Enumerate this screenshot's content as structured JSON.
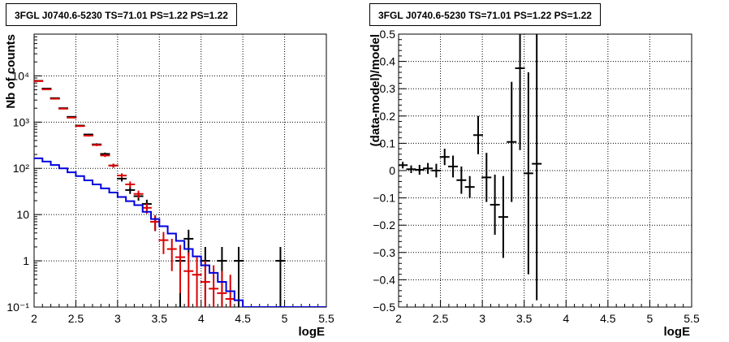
{
  "chart_data": [
    {
      "type": "line",
      "title": "3FGL J0740.6-5230 TS=71.01 PS=1.22 PS=1.22",
      "xlabel": "logE",
      "ylabel": "Nb of counts",
      "xlim": [
        2,
        5.5
      ],
      "ylim": [
        0.1,
        80000
      ],
      "yscale": "log",
      "grid": true,
      "x_ticks": [
        "2",
        "2.5",
        "3",
        "3.5",
        "4",
        "4.5",
        "5",
        "5.5"
      ],
      "y_ticks": [
        "10⁻¹",
        "1",
        "10",
        "10²",
        "10³",
        "10⁴"
      ],
      "series": [
        {
          "color": "#000000",
          "style": "errorbar",
          "points": [
            {
              "x": 2.05,
              "y": 7800,
              "lo": 7700,
              "hi": 7900
            },
            {
              "x": 2.15,
              "y": 5300,
              "lo": 5230,
              "hi": 5370
            },
            {
              "x": 2.25,
              "y": 3300,
              "lo": 3240,
              "hi": 3360
            },
            {
              "x": 2.35,
              "y": 2000,
              "lo": 1955,
              "hi": 2045
            },
            {
              "x": 2.45,
              "y": 1300,
              "lo": 1265,
              "hi": 1335
            },
            {
              "x": 2.55,
              "y": 840,
              "lo": 810,
              "hi": 870
            },
            {
              "x": 2.65,
              "y": 540,
              "lo": 517,
              "hi": 563
            },
            {
              "x": 2.75,
              "y": 330,
              "lo": 312,
              "hi": 348
            },
            {
              "x": 2.85,
              "y": 205,
              "lo": 191,
              "hi": 219
            },
            {
              "x": 2.95,
              "y": 115,
              "lo": 104,
              "hi": 126
            },
            {
              "x": 3.05,
              "y": 60,
              "lo": 52,
              "hi": 68
            },
            {
              "x": 3.15,
              "y": 34,
              "lo": 28,
              "hi": 40
            },
            {
              "x": 3.25,
              "y": 25,
              "lo": 20,
              "hi": 30
            },
            {
              "x": 3.35,
              "y": 17,
              "lo": 13,
              "hi": 21
            },
            {
              "x": 3.45,
              "y": 7,
              "lo": 4.4,
              "hi": 9.6
            },
            {
              "x": 3.75,
              "y": 1,
              "lo": 0.1,
              "hi": 2
            },
            {
              "x": 3.85,
              "y": 3,
              "lo": 1.3,
              "hi": 4.7
            },
            {
              "x": 4.05,
              "y": 1,
              "lo": 0.1,
              "hi": 2
            },
            {
              "x": 4.25,
              "y": 1,
              "lo": 0.1,
              "hi": 2
            },
            {
              "x": 4.45,
              "y": 1,
              "lo": 0.1,
              "hi": 2
            },
            {
              "x": 4.95,
              "y": 1,
              "lo": 0.1,
              "hi": 2
            }
          ]
        },
        {
          "color": "#dd0000",
          "style": "errorbar",
          "points": [
            {
              "x": 2.05,
              "y": 7700,
              "lo": 7600,
              "hi": 7800
            },
            {
              "x": 2.15,
              "y": 5100,
              "lo": 5030,
              "hi": 5170
            },
            {
              "x": 2.25,
              "y": 3200,
              "lo": 3140,
              "hi": 3260
            },
            {
              "x": 2.35,
              "y": 1950,
              "lo": 1905,
              "hi": 1995
            },
            {
              "x": 2.45,
              "y": 1250,
              "lo": 1215,
              "hi": 1285
            },
            {
              "x": 2.55,
              "y": 820,
              "lo": 790,
              "hi": 850
            },
            {
              "x": 2.65,
              "y": 510,
              "lo": 487,
              "hi": 533
            },
            {
              "x": 2.75,
              "y": 320,
              "lo": 302,
              "hi": 338
            },
            {
              "x": 2.85,
              "y": 190,
              "lo": 176,
              "hi": 204
            },
            {
              "x": 2.95,
              "y": 115,
              "lo": 104,
              "hi": 126
            },
            {
              "x": 3.05,
              "y": 70,
              "lo": 62,
              "hi": 78
            },
            {
              "x": 3.15,
              "y": 45,
              "lo": 38,
              "hi": 52
            },
            {
              "x": 3.25,
              "y": 28,
              "lo": 23,
              "hi": 33
            },
            {
              "x": 3.35,
              "y": 14,
              "lo": 10.5,
              "hi": 17.5
            },
            {
              "x": 3.45,
              "y": 7,
              "lo": 4.5,
              "hi": 9.5
            },
            {
              "x": 3.55,
              "y": 2.8,
              "lo": 1.4,
              "hi": 4.2
            },
            {
              "x": 3.65,
              "y": 1.8,
              "lo": 0.6,
              "hi": 3
            },
            {
              "x": 3.75,
              "y": 1.2,
              "lo": 0.2,
              "hi": 2.2
            },
            {
              "x": 3.85,
              "y": 0.6,
              "lo": 0.1,
              "hi": 1.5
            },
            {
              "x": 3.95,
              "y": 0.5,
              "lo": 0.1,
              "hi": 1.2
            },
            {
              "x": 4.05,
              "y": 0.35,
              "lo": 0.1,
              "hi": 1
            },
            {
              "x": 4.15,
              "y": 0.25,
              "lo": 0.1,
              "hi": 0.8
            },
            {
              "x": 4.25,
              "y": 0.2,
              "lo": 0.1,
              "hi": 0.6
            },
            {
              "x": 4.35,
              "y": 0.15,
              "lo": 0.1,
              "hi": 0.5
            }
          ]
        },
        {
          "color": "#0000dd",
          "style": "step",
          "edges": [
            2.0,
            2.1,
            2.2,
            2.3,
            2.4,
            2.5,
            2.6,
            2.7,
            2.8,
            2.9,
            3.0,
            3.1,
            3.2,
            3.3,
            3.4,
            3.5,
            3.6,
            3.7,
            3.8,
            3.9,
            4.0,
            4.1,
            4.2,
            4.3,
            4.4,
            4.5,
            5.5
          ],
          "values": [
            165,
            140,
            118,
            100,
            82,
            68,
            55,
            45,
            37,
            30,
            24,
            19.5,
            16,
            11.5,
            8,
            5.6,
            3.9,
            2.7,
            1.8,
            1.25,
            0.8,
            0.55,
            0.35,
            0.22,
            0.14,
            0.1
          ]
        }
      ]
    },
    {
      "type": "scatter",
      "title": "3FGL J0740.6-5230 TS=71.01 PS=1.22 PS=1.22",
      "xlabel": "logE",
      "ylabel": "(data-model)/model",
      "xlim": [
        2,
        5.5
      ],
      "ylim": [
        -0.5,
        0.5
      ],
      "grid": true,
      "x_ticks": [
        "2",
        "2.5",
        "3",
        "3.5",
        "4",
        "4.5",
        "5",
        "5.5"
      ],
      "y_ticks": [
        "−0.5",
        "−0.4",
        "−0.3",
        "−0.2",
        "−0.1",
        "0",
        "0.1",
        "0.2",
        "0.3",
        "0.4",
        "0.5"
      ],
      "series": [
        {
          "color": "#000000",
          "style": "errorbar",
          "points": [
            {
              "x": 2.05,
              "y": 0.02,
              "err": 0.012
            },
            {
              "x": 2.15,
              "y": 0.005,
              "err": 0.014
            },
            {
              "x": 2.25,
              "y": 0.003,
              "err": 0.018
            },
            {
              "x": 2.35,
              "y": 0.008,
              "err": 0.02
            },
            {
              "x": 2.45,
              "y": 0.0,
              "err": 0.025
            },
            {
              "x": 2.55,
              "y": 0.05,
              "err": 0.03
            },
            {
              "x": 2.65,
              "y": 0.015,
              "err": 0.04
            },
            {
              "x": 2.75,
              "y": -0.035,
              "err": 0.05
            },
            {
              "x": 2.85,
              "y": -0.06,
              "err": 0.04
            },
            {
              "x": 2.95,
              "y": 0.13,
              "err": 0.07
            },
            {
              "x": 3.05,
              "y": -0.025,
              "err": 0.09
            },
            {
              "x": 3.15,
              "y": -0.125,
              "err": 0.11
            },
            {
              "x": 3.25,
              "y": -0.17,
              "err": 0.15
            },
            {
              "x": 3.35,
              "y": 0.105,
              "err": 0.22
            },
            {
              "x": 3.45,
              "y": 0.375,
              "err": 0.3
            },
            {
              "x": 3.55,
              "y": -0.01,
              "err": 0.37
            },
            {
              "x": 3.65,
              "y": 0.025,
              "err": 0.5
            }
          ]
        }
      ]
    }
  ]
}
